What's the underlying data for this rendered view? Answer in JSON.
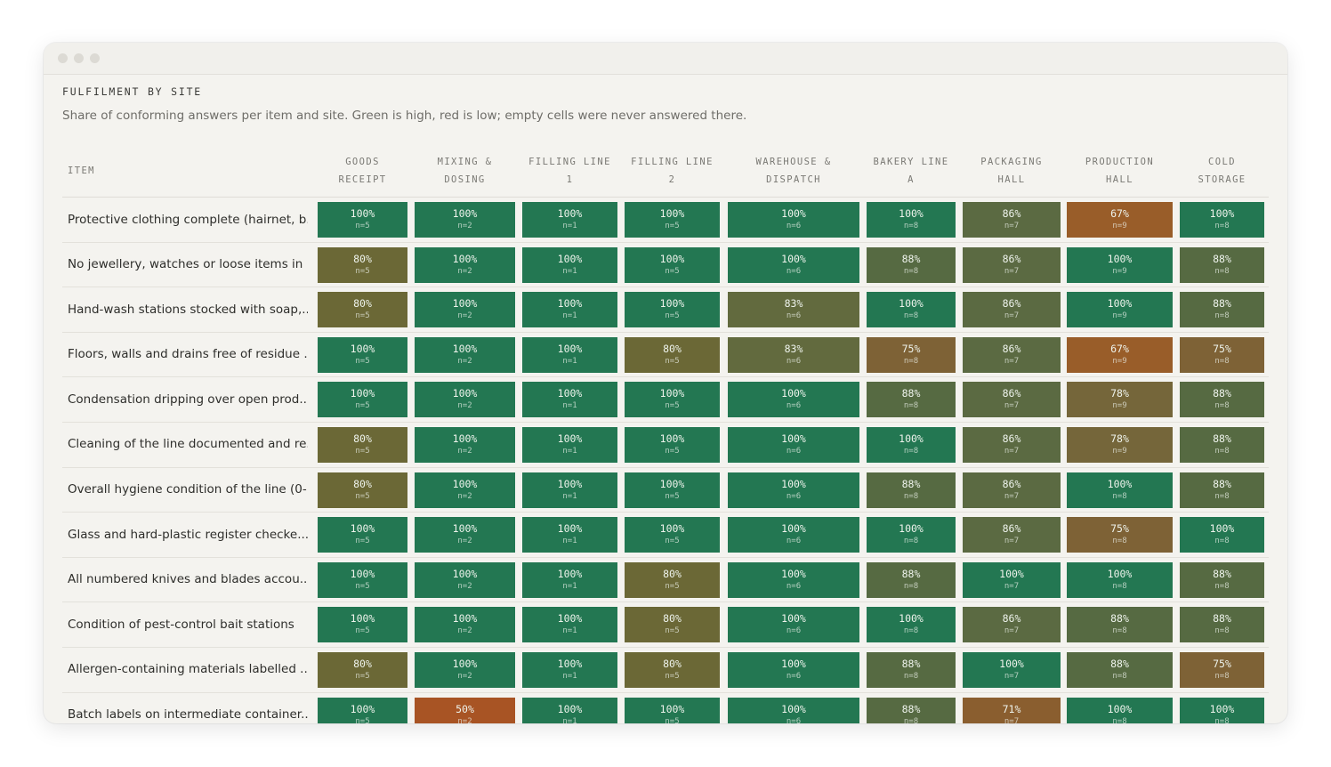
{
  "title": "FULFILMENT BY SITE",
  "subtitle": "Share of conforming answers per item and site. Green is high, red is low; empty cells were never answered there.",
  "item_header": "ITEM",
  "sites": [
    "GOODS\nRECEIPT",
    "MIXING &\nDOSING",
    "FILLING LINE\n1",
    "FILLING LINE\n2",
    "WAREHOUSE &\nDISPATCH",
    "BAKERY LINE\nA",
    "PACKAGING\nHALL",
    "PRODUCTION\nHALL",
    "COLD\nSTORAGE"
  ],
  "colors": {
    "100": "#237752",
    "88": "#566a42",
    "86": "#5b6a42",
    "83": "#626a3e",
    "80": "#6b6836",
    "78": "#75663a",
    "75": "#7e6236",
    "71": "#8a5e2f",
    "67": "#995d29",
    "50": "#a85424"
  },
  "rows": [
    {
      "item": "Protective clothing complete (hairnet, b...",
      "cells": [
        {
          "pct": "100%",
          "n": "n=5"
        },
        {
          "pct": "100%",
          "n": "n=2"
        },
        {
          "pct": "100%",
          "n": "n=1"
        },
        {
          "pct": "100%",
          "n": "n=5"
        },
        {
          "pct": "100%",
          "n": "n=6"
        },
        {
          "pct": "100%",
          "n": "n=8"
        },
        {
          "pct": "86%",
          "n": "n=7"
        },
        {
          "pct": "67%",
          "n": "n=9"
        },
        {
          "pct": "100%",
          "n": "n=8"
        }
      ]
    },
    {
      "item": "No jewellery, watches or loose items in ...",
      "cells": [
        {
          "pct": "80%",
          "n": "n=5"
        },
        {
          "pct": "100%",
          "n": "n=2"
        },
        {
          "pct": "100%",
          "n": "n=1"
        },
        {
          "pct": "100%",
          "n": "n=5"
        },
        {
          "pct": "100%",
          "n": "n=6"
        },
        {
          "pct": "88%",
          "n": "n=8"
        },
        {
          "pct": "86%",
          "n": "n=7"
        },
        {
          "pct": "100%",
          "n": "n=9"
        },
        {
          "pct": "88%",
          "n": "n=8"
        }
      ]
    },
    {
      "item": "Hand-wash stations stocked with soap,...",
      "cells": [
        {
          "pct": "80%",
          "n": "n=5"
        },
        {
          "pct": "100%",
          "n": "n=2"
        },
        {
          "pct": "100%",
          "n": "n=1"
        },
        {
          "pct": "100%",
          "n": "n=5"
        },
        {
          "pct": "83%",
          "n": "n=6"
        },
        {
          "pct": "100%",
          "n": "n=8"
        },
        {
          "pct": "86%",
          "n": "n=7"
        },
        {
          "pct": "100%",
          "n": "n=9"
        },
        {
          "pct": "88%",
          "n": "n=8"
        }
      ]
    },
    {
      "item": "Floors, walls and drains free of residue ...",
      "cells": [
        {
          "pct": "100%",
          "n": "n=5"
        },
        {
          "pct": "100%",
          "n": "n=2"
        },
        {
          "pct": "100%",
          "n": "n=1"
        },
        {
          "pct": "80%",
          "n": "n=5"
        },
        {
          "pct": "83%",
          "n": "n=6"
        },
        {
          "pct": "75%",
          "n": "n=8"
        },
        {
          "pct": "86%",
          "n": "n=7"
        },
        {
          "pct": "67%",
          "n": "n=9"
        },
        {
          "pct": "75%",
          "n": "n=8"
        }
      ]
    },
    {
      "item": "Condensation dripping over open prod...",
      "cells": [
        {
          "pct": "100%",
          "n": "n=5"
        },
        {
          "pct": "100%",
          "n": "n=2"
        },
        {
          "pct": "100%",
          "n": "n=1"
        },
        {
          "pct": "100%",
          "n": "n=5"
        },
        {
          "pct": "100%",
          "n": "n=6"
        },
        {
          "pct": "88%",
          "n": "n=8"
        },
        {
          "pct": "86%",
          "n": "n=7"
        },
        {
          "pct": "78%",
          "n": "n=9"
        },
        {
          "pct": "88%",
          "n": "n=8"
        }
      ]
    },
    {
      "item": "Cleaning of the line documented and re...",
      "cells": [
        {
          "pct": "80%",
          "n": "n=5"
        },
        {
          "pct": "100%",
          "n": "n=2"
        },
        {
          "pct": "100%",
          "n": "n=1"
        },
        {
          "pct": "100%",
          "n": "n=5"
        },
        {
          "pct": "100%",
          "n": "n=6"
        },
        {
          "pct": "100%",
          "n": "n=8"
        },
        {
          "pct": "86%",
          "n": "n=7"
        },
        {
          "pct": "78%",
          "n": "n=9"
        },
        {
          "pct": "88%",
          "n": "n=8"
        }
      ]
    },
    {
      "item": "Overall hygiene condition of the line (0-...",
      "cells": [
        {
          "pct": "80%",
          "n": "n=5"
        },
        {
          "pct": "100%",
          "n": "n=2"
        },
        {
          "pct": "100%",
          "n": "n=1"
        },
        {
          "pct": "100%",
          "n": "n=5"
        },
        {
          "pct": "100%",
          "n": "n=6"
        },
        {
          "pct": "88%",
          "n": "n=8"
        },
        {
          "pct": "86%",
          "n": "n=7"
        },
        {
          "pct": "100%",
          "n": "n=8"
        },
        {
          "pct": "88%",
          "n": "n=8"
        }
      ]
    },
    {
      "item": "Glass and hard-plastic register checke...",
      "cells": [
        {
          "pct": "100%",
          "n": "n=5"
        },
        {
          "pct": "100%",
          "n": "n=2"
        },
        {
          "pct": "100%",
          "n": "n=1"
        },
        {
          "pct": "100%",
          "n": "n=5"
        },
        {
          "pct": "100%",
          "n": "n=6"
        },
        {
          "pct": "100%",
          "n": "n=8"
        },
        {
          "pct": "86%",
          "n": "n=7"
        },
        {
          "pct": "75%",
          "n": "n=8"
        },
        {
          "pct": "100%",
          "n": "n=8"
        }
      ]
    },
    {
      "item": "All numbered knives and blades accou...",
      "cells": [
        {
          "pct": "100%",
          "n": "n=5"
        },
        {
          "pct": "100%",
          "n": "n=2"
        },
        {
          "pct": "100%",
          "n": "n=1"
        },
        {
          "pct": "80%",
          "n": "n=5"
        },
        {
          "pct": "100%",
          "n": "n=6"
        },
        {
          "pct": "88%",
          "n": "n=8"
        },
        {
          "pct": "100%",
          "n": "n=7"
        },
        {
          "pct": "100%",
          "n": "n=8"
        },
        {
          "pct": "88%",
          "n": "n=8"
        }
      ]
    },
    {
      "item": "Condition of pest-control bait stations",
      "cells": [
        {
          "pct": "100%",
          "n": "n=5"
        },
        {
          "pct": "100%",
          "n": "n=2"
        },
        {
          "pct": "100%",
          "n": "n=1"
        },
        {
          "pct": "80%",
          "n": "n=5"
        },
        {
          "pct": "100%",
          "n": "n=6"
        },
        {
          "pct": "100%",
          "n": "n=8"
        },
        {
          "pct": "86%",
          "n": "n=7"
        },
        {
          "pct": "88%",
          "n": "n=8"
        },
        {
          "pct": "88%",
          "n": "n=8"
        }
      ]
    },
    {
      "item": "Allergen-containing materials labelled ...",
      "cells": [
        {
          "pct": "80%",
          "n": "n=5"
        },
        {
          "pct": "100%",
          "n": "n=2"
        },
        {
          "pct": "100%",
          "n": "n=1"
        },
        {
          "pct": "80%",
          "n": "n=5"
        },
        {
          "pct": "100%",
          "n": "n=6"
        },
        {
          "pct": "88%",
          "n": "n=8"
        },
        {
          "pct": "100%",
          "n": "n=7"
        },
        {
          "pct": "88%",
          "n": "n=8"
        },
        {
          "pct": "75%",
          "n": "n=8"
        }
      ]
    },
    {
      "item": "Batch labels on intermediate container...",
      "cells": [
        {
          "pct": "100%",
          "n": "n=5"
        },
        {
          "pct": "50%",
          "n": "n=2"
        },
        {
          "pct": "100%",
          "n": "n=1"
        },
        {
          "pct": "100%",
          "n": "n=5"
        },
        {
          "pct": "100%",
          "n": "n=6"
        },
        {
          "pct": "88%",
          "n": "n=8"
        },
        {
          "pct": "71%",
          "n": "n=7"
        },
        {
          "pct": "100%",
          "n": "n=8"
        },
        {
          "pct": "100%",
          "n": "n=8"
        }
      ]
    }
  ]
}
